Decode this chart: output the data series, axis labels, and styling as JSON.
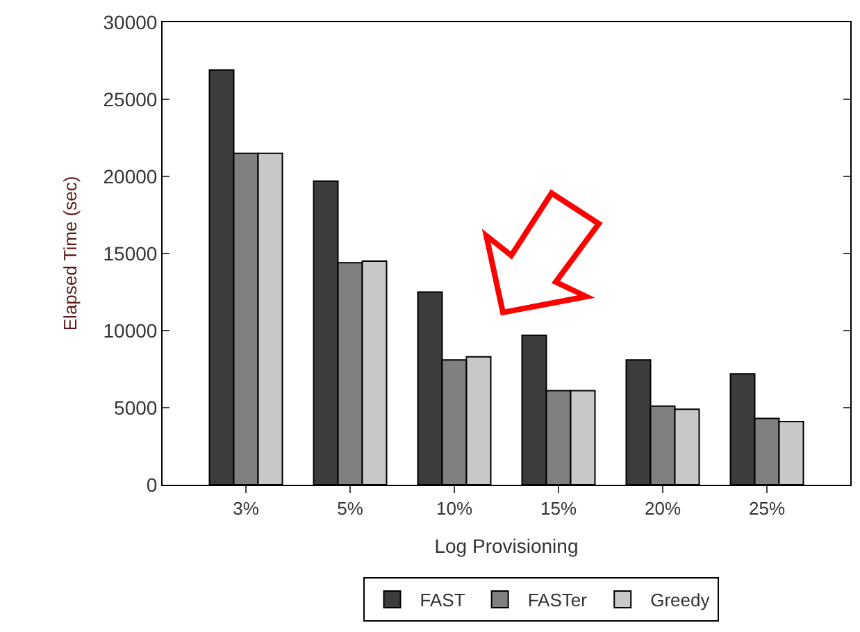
{
  "chart_data": {
    "type": "bar",
    "xlabel": "Log Provisioning",
    "ylabel": "Elapsed Time (sec)",
    "categories": [
      "3%",
      "5%",
      "10%",
      "15%",
      "20%",
      "25%"
    ],
    "series": [
      {
        "name": "FAST",
        "color": "#3c3c3c",
        "values": [
          26900,
          19700,
          12500,
          9700,
          8100,
          7200
        ]
      },
      {
        "name": "FASTer",
        "color": "#808080",
        "values": [
          21500,
          14400,
          8100,
          6100,
          5100,
          4300
        ]
      },
      {
        "name": "Greedy",
        "color": "#c8c8c8",
        "values": [
          21500,
          14500,
          8300,
          6100,
          4900,
          4100
        ]
      }
    ],
    "ylim": [
      0,
      30000
    ],
    "yticks": [
      0,
      5000,
      10000,
      15000,
      20000,
      25000,
      30000
    ],
    "legend": "bottom"
  }
}
